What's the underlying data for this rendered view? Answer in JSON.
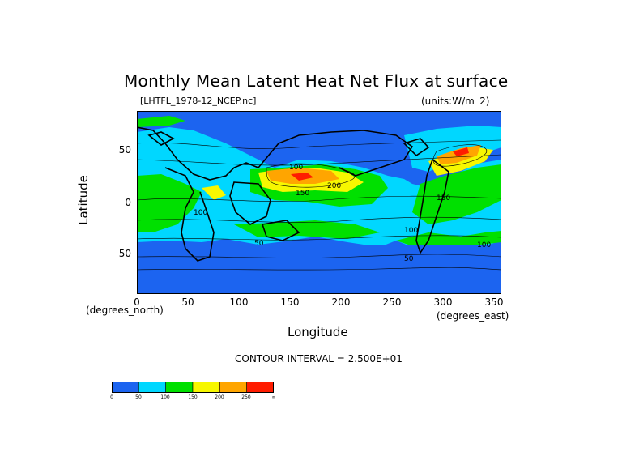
{
  "title": "Monthly Mean Latent Heat Net Flux at surface",
  "file_label": "[LHTFL_1978-12_NCEP.nc]",
  "units_label": "(units:W/m^-2)",
  "ylabel": "Latitude",
  "xlabel": "Longitude",
  "y_unit_note": "(degrees_north)",
  "x_unit_note": "(degrees_east)",
  "contour_interval": "CONTOUR INTERVAL = 2.500E+01",
  "map": {
    "xlim": [
      0,
      357.5
    ],
    "ylim": [
      -90,
      90
    ],
    "x_ticks": [
      "0",
      "50",
      "100",
      "150",
      "200",
      "250",
      "300",
      "350"
    ],
    "y_ticks": [
      "50",
      "0",
      "-50"
    ],
    "contour_labels": [
      "100",
      "200",
      "150",
      "100",
      "50",
      "150",
      "100",
      "100",
      "50"
    ]
  },
  "colorbar": {
    "colors": [
      "#1c64f0",
      "#00d7ff",
      "#00e000",
      "#f7f700",
      "#ffa500",
      "#ff1c00"
    ],
    "tick_labels": [
      "0",
      "50",
      "100",
      "150",
      "200",
      "250",
      "∞"
    ]
  }
}
